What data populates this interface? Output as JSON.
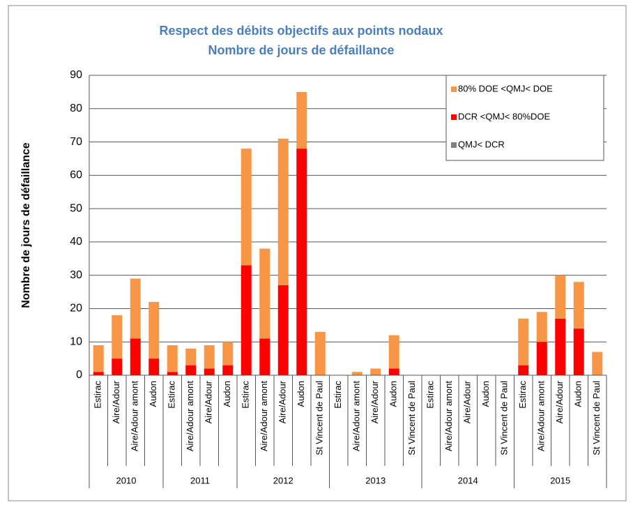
{
  "chart_data": {
    "type": "stacked-bar",
    "title": "Respect des débits objectifs aux points nodaux",
    "subtitle": "Nombre de jours de défaillance",
    "y_label": "Nombre de jours de défaillance",
    "groups": [
      {
        "label": "2010",
        "categories": [
          "Estirac",
          "Aire/Adour",
          "Aire/Adour amont",
          "Audon"
        ]
      },
      {
        "label": "2011",
        "categories": [
          "Estirac",
          "Aire/Adour amont",
          "Aire/Adour",
          "Audon"
        ]
      },
      {
        "label": "2012",
        "categories": [
          "Estirac",
          "Aire/Adour amont",
          "Aire/Adour",
          "Audon",
          "St Vincent de Paul"
        ]
      },
      {
        "label": "2013",
        "categories": [
          "Estirac",
          "Aire/Adour amont",
          "Aire/Adour",
          "Audon",
          "St Vincent de Paul"
        ]
      },
      {
        "label": "2014",
        "categories": [
          "Estirac",
          "Aire/Adour amont",
          "Aire/Adour",
          "Audon",
          "St Vincent de Paul"
        ]
      },
      {
        "label": "2015",
        "categories": [
          "Estirac",
          "Aire/Adour amont",
          "Aire/Adour",
          "Audon",
          "St Vincent de Paul"
        ]
      }
    ],
    "series": [
      {
        "name": "QMJ< DCR",
        "color": "#7f7f7f",
        "values": [
          0,
          0,
          0,
          0,
          0,
          0,
          0,
          0,
          0,
          0,
          0,
          0,
          0,
          0,
          0,
          0,
          0,
          0,
          0,
          0,
          0,
          0,
          0,
          0,
          0,
          0,
          0,
          0
        ]
      },
      {
        "name": "DCR <QMJ< 80%DOE",
        "color": "#ff0000",
        "values": [
          1,
          5,
          11,
          5,
          1,
          3,
          2,
          3,
          33,
          11,
          27,
          68,
          0,
          0,
          0,
          0,
          2,
          0,
          0,
          0,
          0,
          0,
          0,
          3,
          10,
          17,
          14,
          0
        ]
      },
      {
        "name": "80% DOE <QMJ< DOE",
        "color": "#f79646",
        "values": [
          8,
          13,
          18,
          17,
          8,
          5,
          7,
          7,
          35,
          27,
          44,
          17,
          13,
          0,
          1,
          2,
          10,
          0,
          0,
          0,
          0,
          0,
          0,
          14,
          9,
          13,
          14,
          7
        ]
      }
    ],
    "ylim": [
      0,
      90
    ],
    "yticks": [
      0,
      10,
      20,
      30,
      40,
      50,
      60,
      70,
      80,
      90
    ],
    "grid": true,
    "legend": "top-right"
  }
}
